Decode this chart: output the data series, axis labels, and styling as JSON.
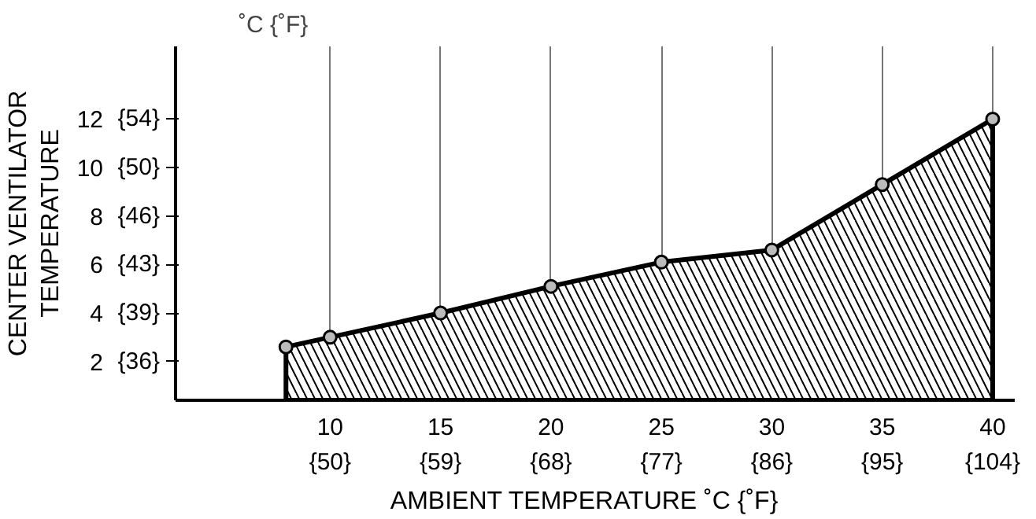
{
  "chart_data": {
    "type": "area",
    "xlabel": "AMBIENT TEMPERATURE    ˚C {˚F}",
    "ylabel": "CENTER VENTILATOR\nTEMPERATURE",
    "annotations": [
      "˚C {˚F}"
    ],
    "x": [
      8,
      10,
      15,
      20,
      25,
      30,
      35,
      40
    ],
    "series": [
      {
        "color": "#000000",
        "values": [
          2.6,
          3.0,
          4.0,
          5.1,
          6.1,
          6.6,
          9.3,
          12.0
        ]
      }
    ],
    "xlim": [
      3,
      41
    ],
    "ylim": [
      0.4,
      15
    ],
    "xticks": [
      10,
      15,
      20,
      25,
      30,
      35,
      40
    ],
    "yticks": [
      2,
      4,
      6,
      8,
      10,
      12
    ],
    "x2lim": [
      37.4,
      105.8
    ],
    "x2ticks": [
      {
        "value": 50,
        "label": "{50}"
      },
      {
        "value": 59,
        "label": "{59}"
      },
      {
        "value": 68,
        "label": "{68}"
      },
      {
        "value": 77,
        "label": "{77}"
      },
      {
        "value": 86,
        "label": "{86}"
      },
      {
        "value": 95,
        "label": "{95}"
      },
      {
        "value": 104,
        "label": "{104}"
      }
    ],
    "y2lim": [
      32.72,
      59
    ],
    "y2ticks": [
      {
        "value": 35.6,
        "label": "{36}"
      },
      {
        "value": 39.2,
        "label": "{39}"
      },
      {
        "value": 42.8,
        "label": "{43}"
      },
      {
        "value": 46.4,
        "label": "{46}"
      },
      {
        "value": 50,
        "label": "{50}"
      },
      {
        "value": 53.6,
        "label": "{54}"
      }
    ],
    "grid": "x",
    "marker": "circle",
    "line_style": "solid"
  }
}
